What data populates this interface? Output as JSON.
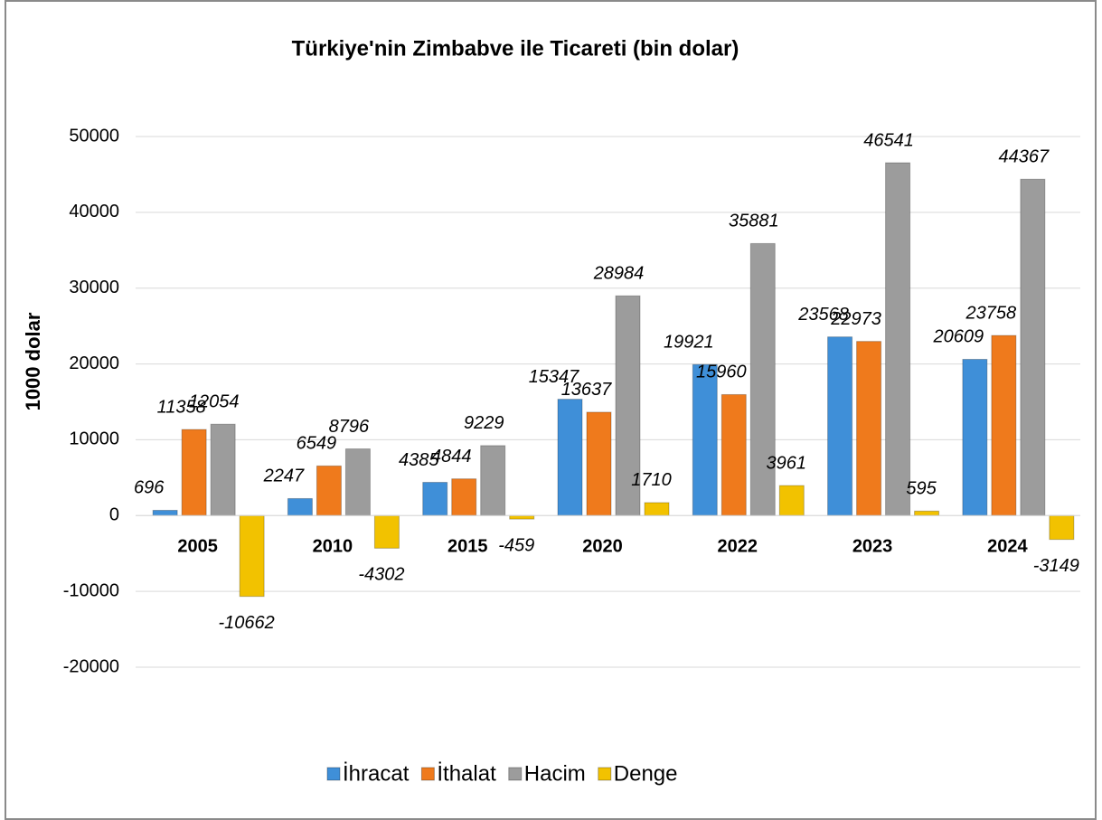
{
  "chart_data": {
    "type": "bar",
    "title": "Türkiye'nin Zimbabve ile Ticareti (bin dolar)",
    "ylabel": "1000 dolar",
    "categories": [
      "2005",
      "2010",
      "2015",
      "2020",
      "2022",
      "2023",
      "2024"
    ],
    "series": [
      {
        "name": "İhracat",
        "color": "#3f8fd8",
        "values": [
          696,
          2247,
          4385,
          15347,
          19921,
          23568,
          20609
        ]
      },
      {
        "name": "İthalat",
        "color": "#ef7a1c",
        "values": [
          11358,
          6549,
          4844,
          13637,
          15960,
          22973,
          23758
        ]
      },
      {
        "name": "Hacim",
        "color": "#9c9c9c",
        "values": [
          12054,
          8796,
          9229,
          28984,
          35881,
          46541,
          44367
        ]
      },
      {
        "name": "Denge",
        "color": "#f2c200",
        "values": [
          -10662,
          -4302,
          -459,
          1710,
          3961,
          595,
          -3149
        ]
      }
    ],
    "ylim": [
      -20000,
      50000
    ],
    "yticks": [
      -20000,
      -10000,
      0,
      10000,
      20000,
      30000,
      40000,
      50000
    ],
    "grid": true,
    "legend": "bottom"
  }
}
